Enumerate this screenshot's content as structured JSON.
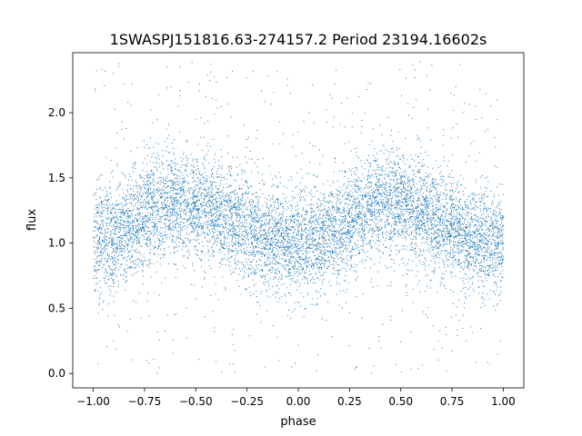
{
  "chart_data": {
    "type": "scatter",
    "title": "1SWASPJ151816.63-274157.2 Period 23194.16602s",
    "xlabel": "phase",
    "ylabel": "flux",
    "xlim": [
      -1.1,
      1.1
    ],
    "ylim": [
      -0.11,
      2.46
    ],
    "xticks": [
      -1.0,
      -0.75,
      -0.5,
      -0.25,
      0.0,
      0.25,
      0.5,
      0.75,
      1.0
    ],
    "xtick_labels": [
      "−1.00",
      "−0.75",
      "−0.50",
      "−0.25",
      "0.00",
      "0.25",
      "0.50",
      "0.75",
      "1.00"
    ],
    "yticks": [
      0.0,
      0.5,
      1.0,
      1.5,
      2.0
    ],
    "ytick_labels": [
      "0.0",
      "0.5",
      "1.0",
      "1.5",
      "2.0"
    ],
    "grid": false,
    "legend": "none",
    "marker_color": "#1f77b4",
    "series": [
      {
        "x_range": [
          -1.0,
          1.0
        ],
        "phase_bins": [
          -1.0,
          -0.9,
          -0.8,
          -0.7,
          -0.6,
          -0.5,
          -0.4,
          -0.3,
          -0.2,
          -0.1,
          0.0,
          0.1,
          0.2,
          0.3,
          0.4,
          0.5,
          0.6,
          0.7,
          0.8,
          0.9,
          1.0
        ],
        "median_flux": [
          1.0,
          1.08,
          1.15,
          1.28,
          1.33,
          1.3,
          1.22,
          1.15,
          1.08,
          1.02,
          0.98,
          1.02,
          1.1,
          1.25,
          1.33,
          1.3,
          1.22,
          1.15,
          1.08,
          1.02,
          1.0
        ],
        "scatter_sigma": 0.2,
        "flux_range": [
          0.0,
          2.4
        ]
      }
    ]
  }
}
